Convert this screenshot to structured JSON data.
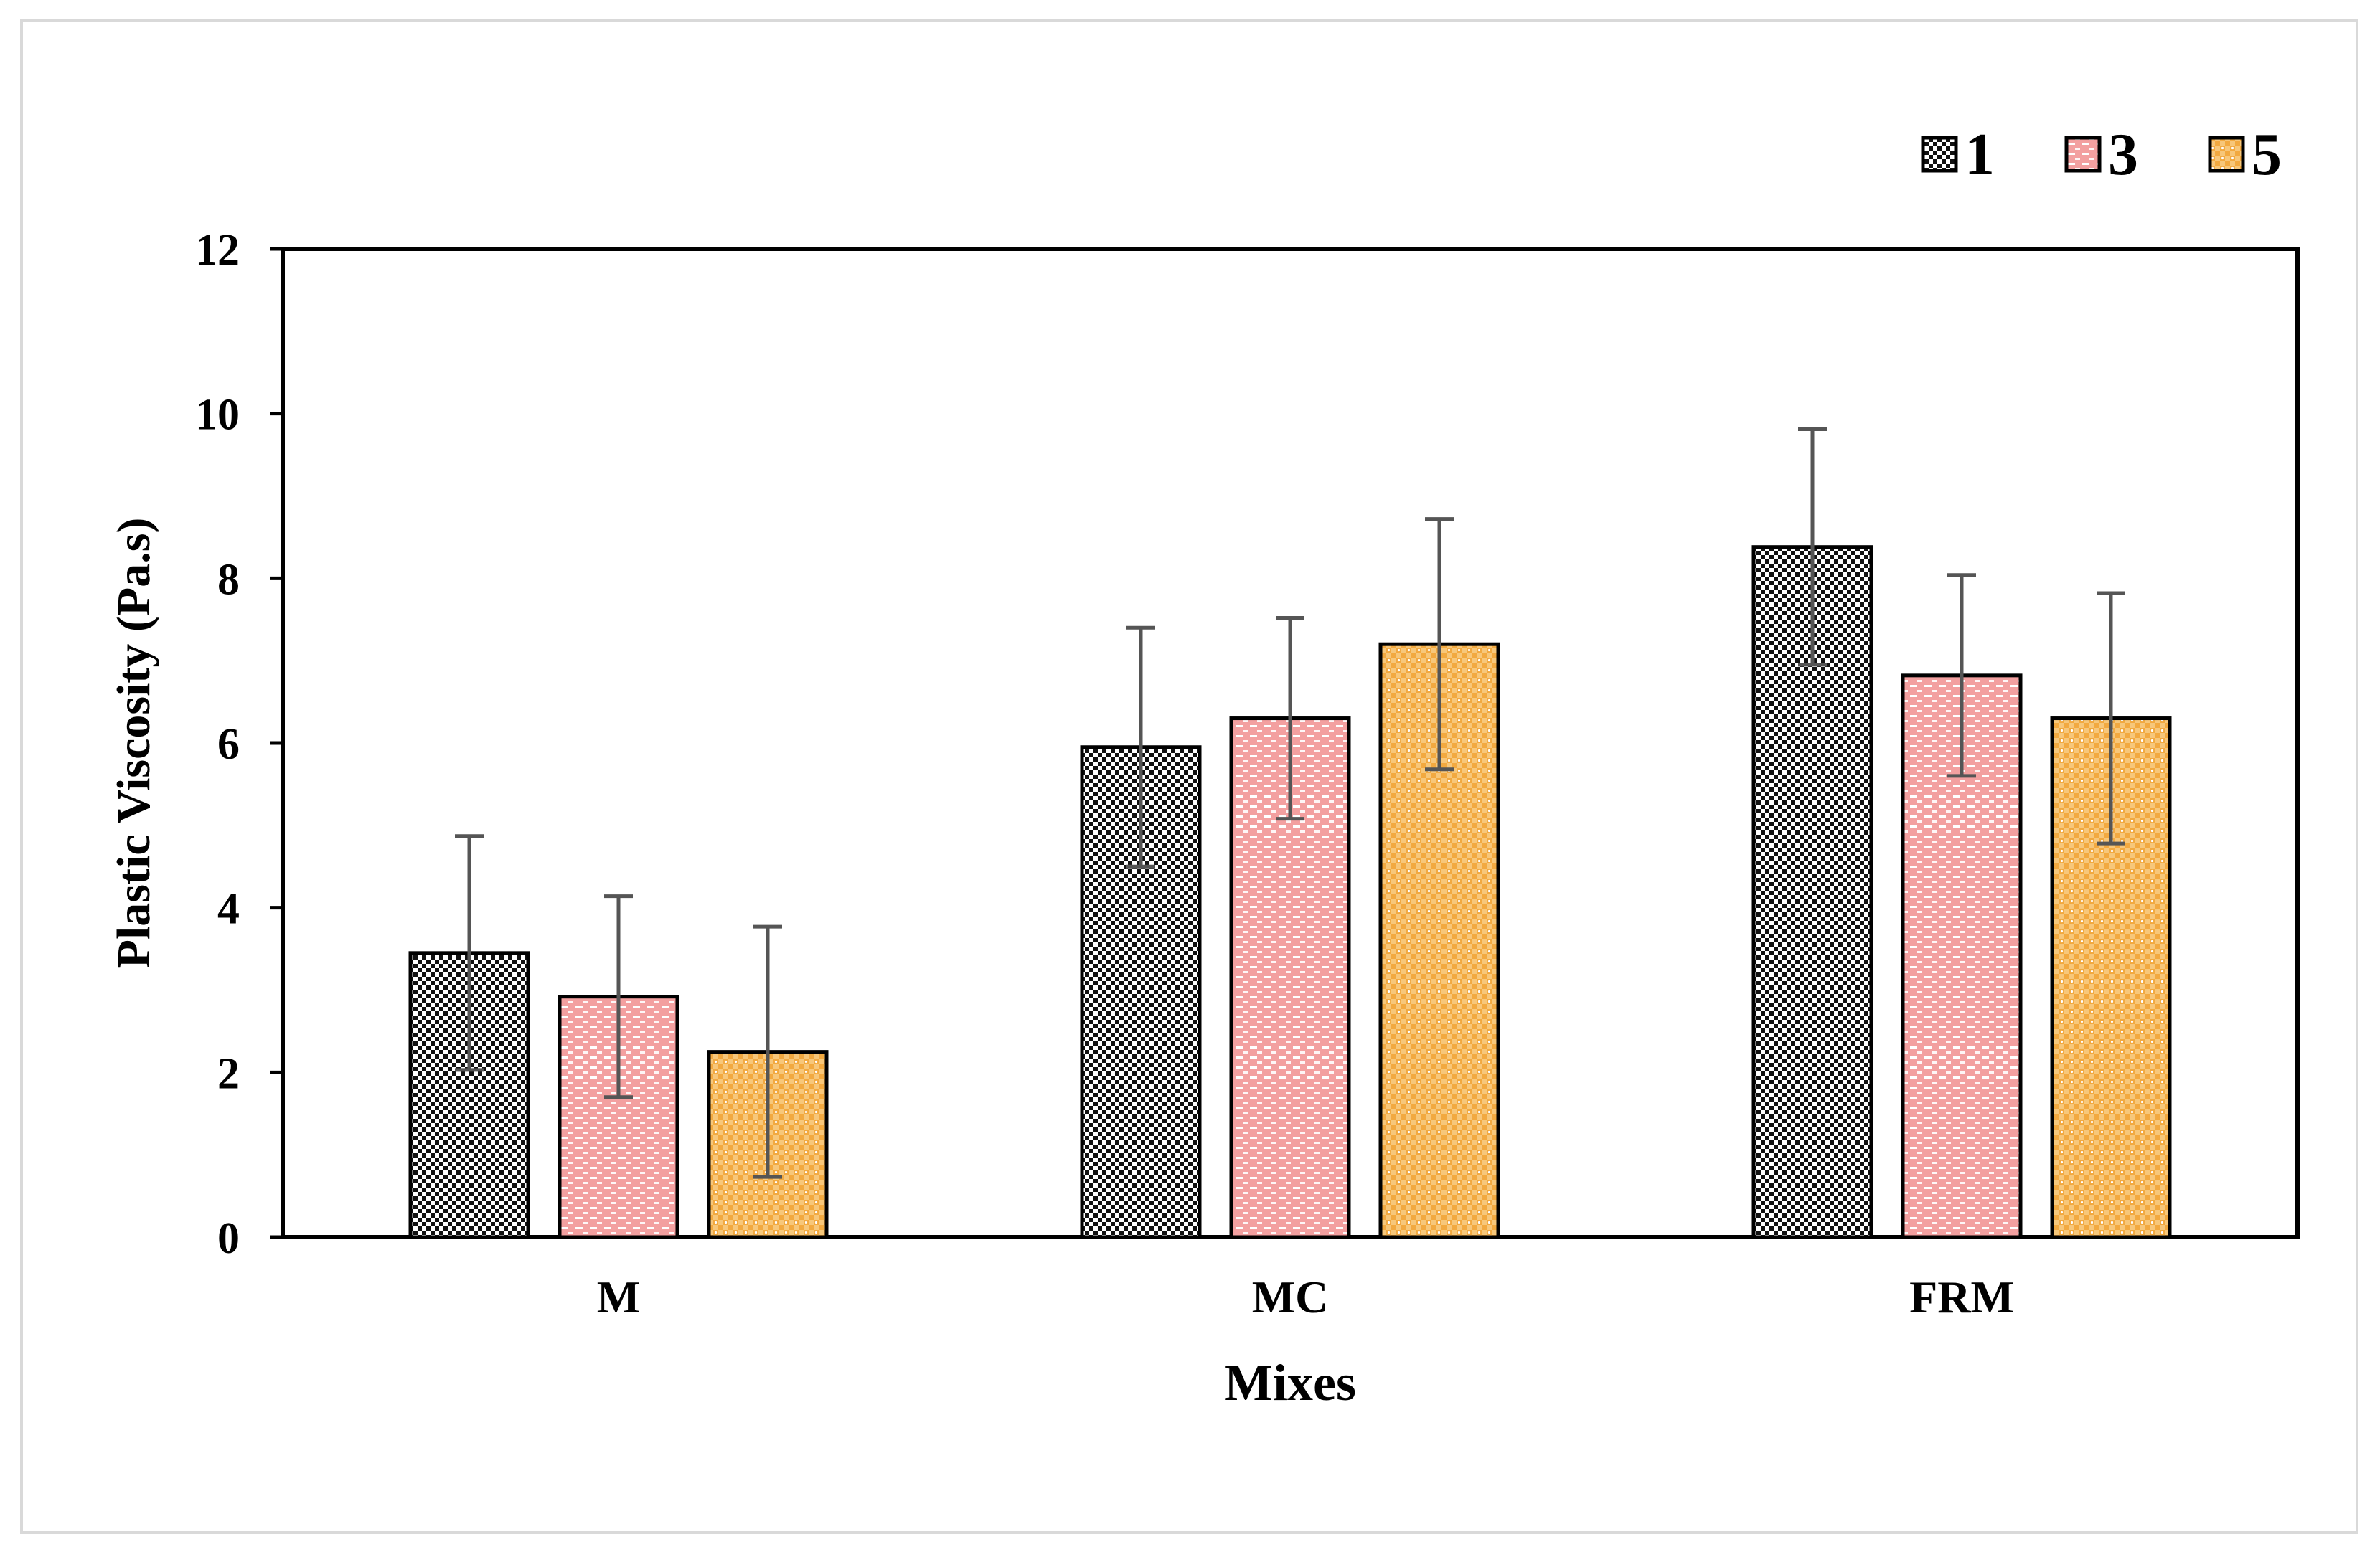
{
  "chart_data": {
    "type": "bar",
    "xlabel": "Mixes",
    "ylabel": "Plastic Viscosity (Pa.s)",
    "ylim": [
      0,
      12
    ],
    "yticks": [
      0,
      2,
      4,
      6,
      8,
      10,
      12
    ],
    "categories": [
      "M",
      "MC",
      "FRM"
    ],
    "legend_position": "top-right",
    "grid": false,
    "series": [
      {
        "name": "1",
        "color": "#000000",
        "pattern": "checker-black",
        "values": [
          3.45,
          5.95,
          8.38
        ],
        "errors": [
          1.42,
          1.45,
          1.43
        ]
      },
      {
        "name": "3",
        "color": "#f08a8a",
        "pattern": "dash-pink",
        "values": [
          2.92,
          6.3,
          6.82
        ],
        "errors": [
          1.22,
          1.22,
          1.22
        ]
      },
      {
        "name": "5",
        "color": "#f0a030",
        "pattern": "dot-orange",
        "values": [
          2.25,
          7.2,
          6.3
        ],
        "errors": [
          1.52,
          1.52,
          1.52
        ]
      }
    ]
  }
}
